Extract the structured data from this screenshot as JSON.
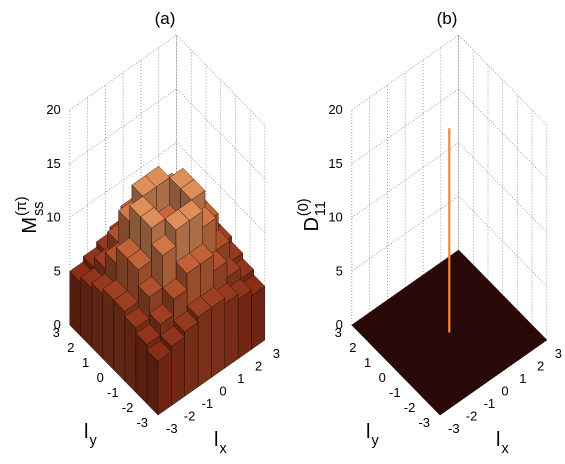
{
  "chart_data": [
    {
      "type": "surface3d",
      "title": "(a)",
      "zlabel": {
        "text": "M",
        "sub": "ss",
        "sup": "(π)"
      },
      "xlabel": {
        "text": "l",
        "sub": "x"
      },
      "ylabel": {
        "text": "l",
        "sub": "y"
      },
      "x": [
        -2.625,
        -1.875,
        -1.125,
        -0.375,
        0.375,
        1.125,
        1.875,
        2.625
      ],
      "y": [
        -2.625,
        -1.875,
        -1.125,
        -0.375,
        0.375,
        1.125,
        1.875,
        2.625
      ],
      "z": [
        [
          5,
          5.5,
          6,
          6.5,
          6.5,
          6,
          5.5,
          5
        ],
        [
          5.5,
          6.5,
          8,
          9.5,
          9.5,
          8,
          6.5,
          5.5
        ],
        [
          6,
          8,
          11,
          12.5,
          12.5,
          11,
          8,
          6
        ],
        [
          6.5,
          9.5,
          12.5,
          10,
          10,
          12.5,
          9.5,
          6.5
        ],
        [
          6.5,
          9.5,
          12.5,
          10,
          10,
          12.5,
          9.5,
          6.5
        ],
        [
          6,
          8,
          11,
          12.5,
          12.5,
          11,
          8,
          6
        ],
        [
          5.5,
          6.5,
          8,
          9.5,
          9.5,
          8,
          6.5,
          5.5
        ],
        [
          5,
          5.5,
          6,
          6.5,
          6.5,
          6,
          5.5,
          5
        ]
      ],
      "xlim": [
        -3,
        3
      ],
      "ylim": [
        -3,
        3
      ],
      "zlim": [
        0,
        20
      ],
      "xticks": [
        -3,
        -2,
        -1,
        0,
        1,
        2,
        3
      ],
      "yticks": [
        -3,
        -2,
        -1,
        0,
        1,
        2,
        3
      ],
      "zticks": [
        0,
        5,
        10,
        15,
        20
      ],
      "grid": true,
      "colormap": [
        "#3a0e08",
        "#8a2e18",
        "#c8683a",
        "#f2b37a",
        "#ffe4b0"
      ]
    },
    {
      "type": "surface3d",
      "title": "(b)",
      "zlabel": {
        "text": "D",
        "sub": "11",
        "sup": "(0)"
      },
      "xlabel": {
        "text": "l",
        "sub": "x"
      },
      "ylabel": {
        "text": "l",
        "sub": "y"
      },
      "x": [
        -2.625,
        -1.875,
        -1.125,
        -0.375,
        0.375,
        1.125,
        1.875,
        2.625
      ],
      "y": [
        -2.625,
        -1.875,
        -1.125,
        -0.375,
        0.375,
        1.125,
        1.875,
        2.625
      ],
      "z": [
        [
          0,
          0,
          0,
          0,
          0,
          0,
          0,
          0
        ],
        [
          0,
          0,
          0,
          0,
          0,
          0,
          0,
          0
        ],
        [
          0,
          0,
          0,
          0,
          0,
          0,
          0,
          0
        ],
        [
          0,
          0,
          0,
          0,
          0,
          0,
          0,
          0
        ],
        [
          0,
          0,
          0,
          0,
          0,
          0,
          0,
          0
        ],
        [
          0,
          0,
          0,
          0,
          0,
          0,
          0,
          0
        ],
        [
          0,
          0,
          0,
          0,
          0,
          0,
          0,
          0
        ],
        [
          0,
          0,
          0,
          0,
          0,
          0,
          0,
          0
        ]
      ],
      "spike": {
        "x": 0,
        "y": 0,
        "z": 19,
        "color": "#f4883c"
      },
      "xlim": [
        -3,
        3
      ],
      "ylim": [
        -3,
        3
      ],
      "zlim": [
        0,
        20
      ],
      "xticks": [
        -3,
        -2,
        -1,
        0,
        1,
        2,
        3
      ],
      "yticks": [
        -3,
        -2,
        -1,
        0,
        1,
        2,
        3
      ],
      "zticks": [
        0,
        5,
        10,
        15,
        20
      ],
      "grid": true,
      "colormap": [
        "#2a0a08",
        "#8a2e18",
        "#c8683a",
        "#f2b37a",
        "#ffe4b0"
      ]
    }
  ]
}
